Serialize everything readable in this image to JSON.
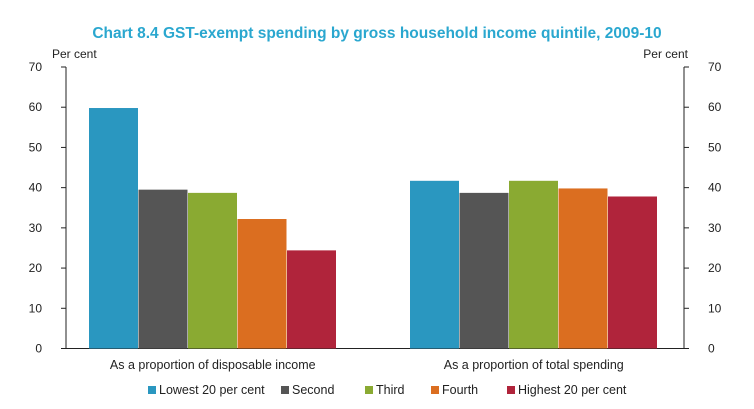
{
  "chart_data": {
    "type": "bar",
    "title": "Chart 8.4 GST-exempt spending by gross household income quintile, 2009-10",
    "title_color": "#2aa7cf",
    "ylabel_left": "Per cent",
    "ylabel_right": "Per cent",
    "ylim": [
      0,
      70
    ],
    "yticks": [
      0,
      10,
      20,
      30,
      40,
      50,
      60,
      70
    ],
    "categories": [
      "As a proportion of disposable income",
      "As a proportion of total spending"
    ],
    "series": [
      {
        "name": "Lowest 20 per cent",
        "color": "#2a97c0",
        "values": [
          59.8,
          41.7
        ]
      },
      {
        "name": "Second",
        "color": "#555555",
        "values": [
          39.5,
          38.7
        ]
      },
      {
        "name": "Third",
        "color": "#8aaa32",
        "values": [
          38.7,
          41.7
        ]
      },
      {
        "name": "Fourth",
        "color": "#db6e20",
        "values": [
          32.2,
          39.8
        ]
      },
      {
        "name": "Highest 20 per cent",
        "color": "#b0243b",
        "values": [
          24.4,
          37.8
        ]
      }
    ],
    "grid": false,
    "legend_position": "bottom"
  }
}
